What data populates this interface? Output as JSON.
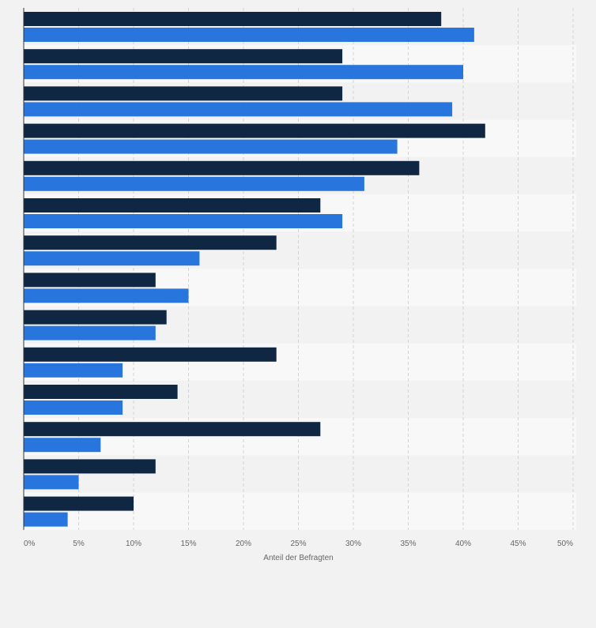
{
  "chart_data": {
    "type": "bar",
    "orientation": "horizontal",
    "title": "",
    "xlabel": "Anteil der Befragten",
    "ylabel": "",
    "xlim": [
      0,
      50
    ],
    "tick_labels": [
      "0%",
      "5%",
      "10%",
      "15%",
      "20%",
      "25%",
      "30%",
      "35%",
      "40%",
      "45%",
      "50%"
    ],
    "grid": true,
    "legend": "none",
    "categories": [
      "",
      "",
      "",
      "",
      "",
      "",
      "",
      "",
      "",
      "",
      "",
      "",
      "",
      ""
    ],
    "series": [
      {
        "color": "#0f2742",
        "values": [
          38,
          29,
          29,
          42,
          36,
          27,
          23,
          12,
          13,
          23,
          14,
          27,
          12,
          10
        ]
      },
      {
        "color": "#2876dd",
        "values": [
          41,
          40,
          39,
          34,
          31,
          29,
          16,
          15,
          12,
          9,
          9,
          7,
          5,
          4
        ]
      }
    ]
  }
}
